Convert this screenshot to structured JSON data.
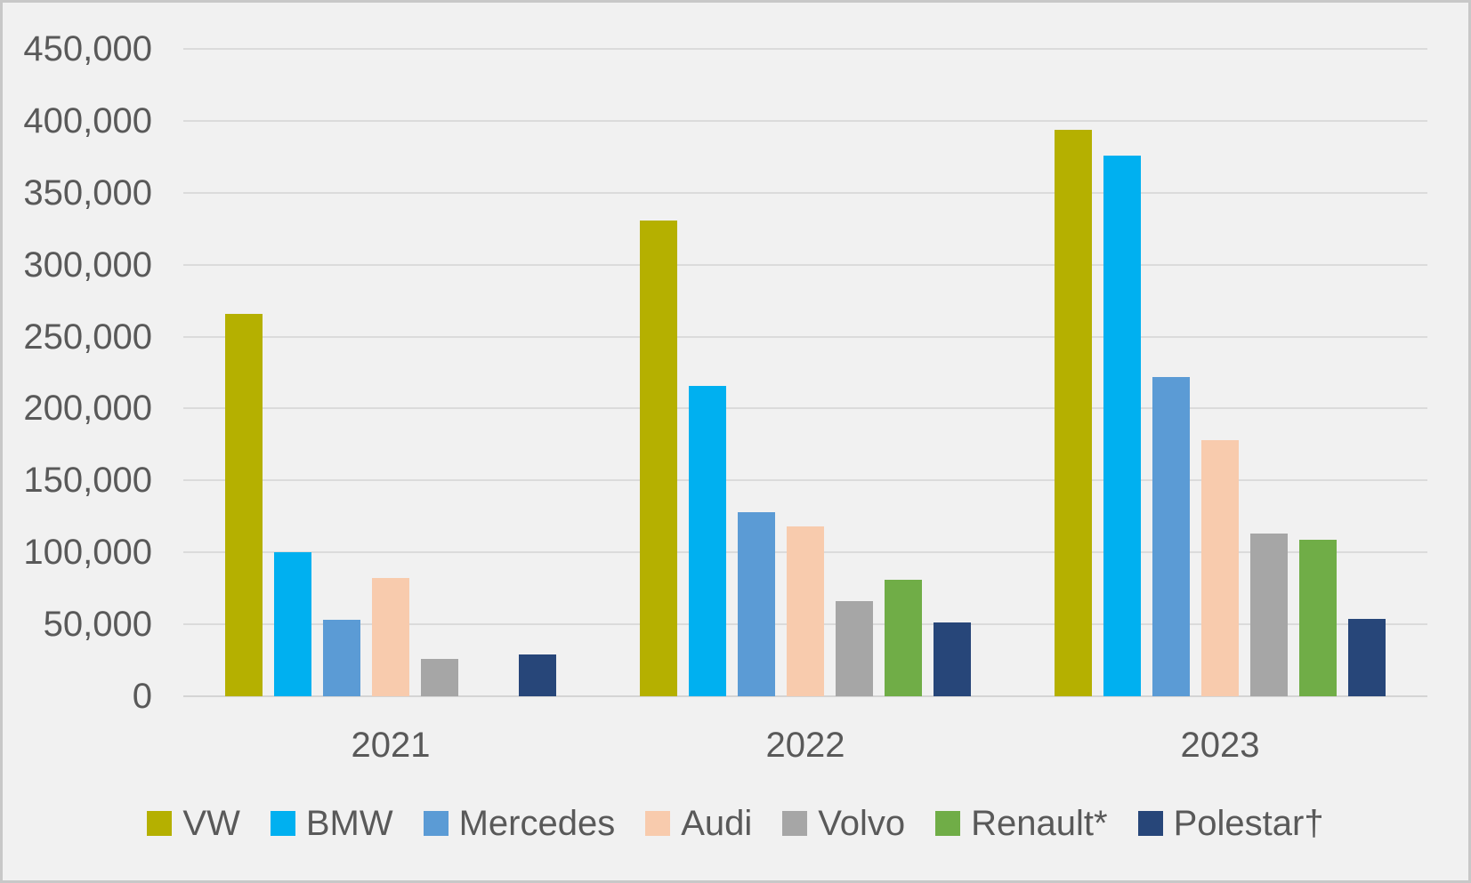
{
  "chart_data": {
    "type": "bar",
    "title": "",
    "xlabel": "",
    "ylabel": "",
    "categories": [
      "2021",
      "2022",
      "2023"
    ],
    "series": [
      {
        "name": "VW",
        "color": "#B5B000",
        "values": [
          266000,
          331000,
          394000
        ]
      },
      {
        "name": "BMW",
        "color": "#00B0F0",
        "values": [
          100000,
          216000,
          376000
        ]
      },
      {
        "name": "Mercedes",
        "color": "#5B9BD5",
        "values": [
          53000,
          128000,
          222000
        ]
      },
      {
        "name": "Audi",
        "color": "#F8CBAD",
        "values": [
          82000,
          118000,
          178000
        ]
      },
      {
        "name": "Volvo",
        "color": "#A6A6A6",
        "values": [
          26000,
          66000,
          113000
        ]
      },
      {
        "name": "Renault*",
        "color": "#70AD47",
        "values": [
          null,
          81000,
          109000
        ]
      },
      {
        "name": "Polestar†",
        "color": "#274679",
        "values": [
          29000,
          51000,
          54000
        ]
      }
    ],
    "ylim": [
      0,
      450000
    ],
    "ytick_step": 50000,
    "ytick_labels": [
      "0",
      "50,000",
      "100,000",
      "150,000",
      "200,000",
      "250,000",
      "300,000",
      "350,000",
      "400,000",
      "450,000"
    ],
    "grid": true,
    "legend_position": "bottom"
  },
  "colors": {
    "background": "#f1f1f1",
    "frame_border": "#c8c8c8",
    "gridline": "#dbdbdb",
    "axis_line": "#d4d4d4",
    "text": "#595959"
  }
}
